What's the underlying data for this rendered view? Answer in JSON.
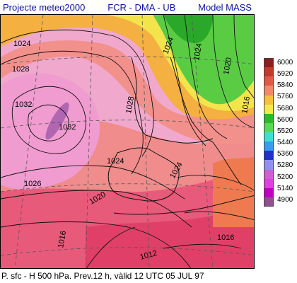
{
  "header": {
    "project": "Projecte meteo2000",
    "org": "FCR - DMA - UB",
    "model": "Model  MASS"
  },
  "footer": {
    "caption": "P. sfc - H 500 hPa.  Prev.12 h, vàlid 12 UTC 05 JUL 97"
  },
  "legend": {
    "labels": [
      "6000",
      "5920",
      "5840",
      "5760",
      "5680",
      "5600",
      "5520",
      "5440",
      "5360",
      "5280",
      "5200",
      "5140",
      "4900"
    ],
    "colors": [
      "#8b1e1e",
      "#c23a2a",
      "#e05a4a",
      "#f08a6a",
      "#f5c040",
      "#f6e84a",
      "#2fb82f",
      "#5ad85a",
      "#40e0d0",
      "#3a9af0",
      "#2030c8",
      "#9090f0",
      "#d060d0",
      "#e040e0",
      "#c000c0",
      "#905090"
    ]
  },
  "map": {
    "isobar_labels": [
      "1024",
      "1028",
      "1032",
      "1032",
      "1028",
      "1024",
      "1024",
      "1026",
      "1020",
      "1024",
      "1016",
      "1016",
      "1012",
      "1020",
      "1016",
      "1024"
    ],
    "background_color": "#f0a0c8"
  }
}
